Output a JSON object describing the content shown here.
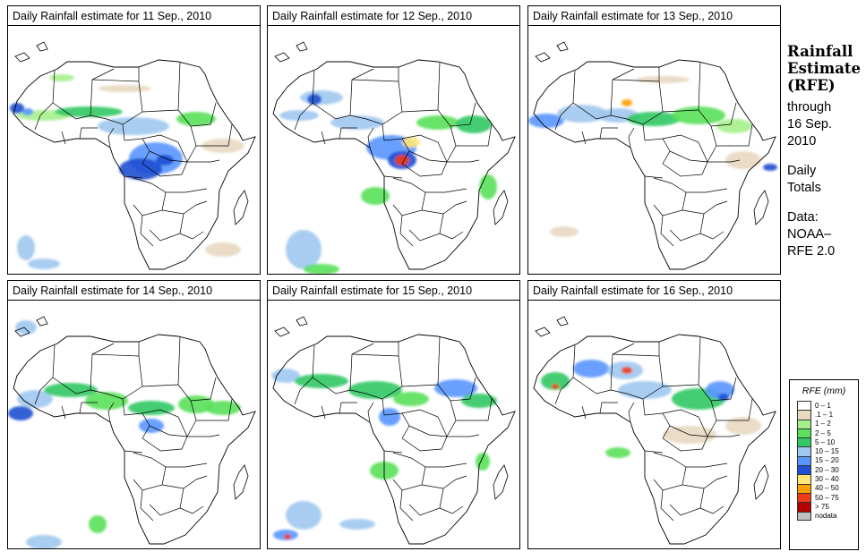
{
  "panels": [
    {
      "title": "Daily Rainfall estimate for  11 Sep., 2010"
    },
    {
      "title": "Daily Rainfall estimate for  12 Sep., 2010"
    },
    {
      "title": "Daily Rainfall estimate for  13 Sep., 2010"
    },
    {
      "title": "Daily Rainfall estimate for  14 Sep., 2010"
    },
    {
      "title": "Daily Rainfall estimate for  15 Sep., 2010"
    },
    {
      "title": "Daily Rainfall estimate for  16 Sep., 2010"
    }
  ],
  "side": {
    "line1": "Rainfall",
    "line2": "Estimate",
    "line3": "(RFE)",
    "through": "through",
    "date1": "16 Sep.",
    "date2": "2010",
    "daily1": "Daily",
    "daily2": "Totals",
    "data_label": "Data:",
    "src1": "NOAA–",
    "src2": "RFE 2.0"
  },
  "legend": {
    "title": "RFE (mm)",
    "items": [
      {
        "label": "0 – 1",
        "color": "#ffffff"
      },
      {
        "label": ".1 – 1",
        "color": "#e8d8c0"
      },
      {
        "label": "1 – 2",
        "color": "#a6f08c"
      },
      {
        "label": "2 – 5",
        "color": "#5ae05a"
      },
      {
        "label": "5 – 10",
        "color": "#32c864"
      },
      {
        "label": "10 – 15",
        "color": "#a0c8f0"
      },
      {
        "label": "15 – 20",
        "color": "#5a96ff"
      },
      {
        "label": "20 – 30",
        "color": "#1e50d2"
      },
      {
        "label": "30 – 40",
        "color": "#ffe678"
      },
      {
        "label": "40 – 50",
        "color": "#ffa000"
      },
      {
        "label": "50 – 75",
        "color": "#f03c14"
      },
      {
        "label": "> 75",
        "color": "#b40000"
      },
      {
        "label": "nodata",
        "color": "#c0c0c0"
      }
    ]
  }
}
